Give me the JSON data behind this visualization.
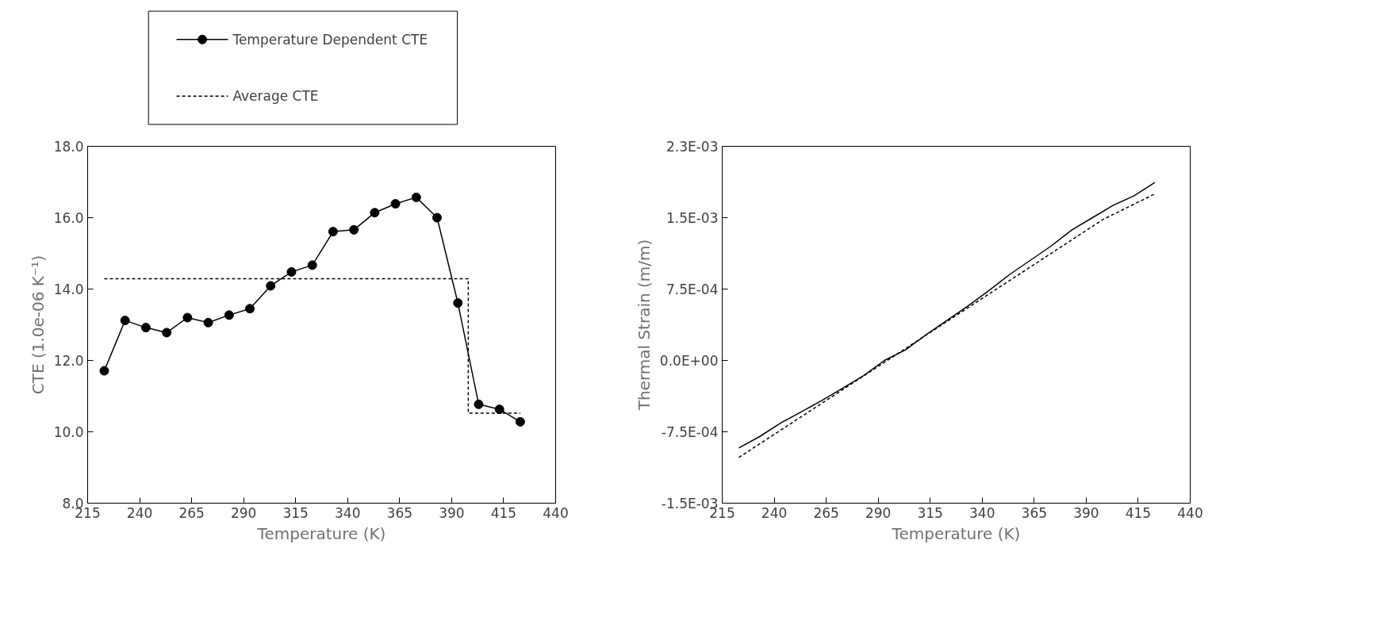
{
  "chart_data": [
    {
      "type": "line",
      "xlabel": "Temperature (K)",
      "ylabel": "CTE (1.0e-06 K⁻¹)",
      "xlim": [
        215,
        440
      ],
      "xticks": [
        215,
        240,
        265,
        290,
        315,
        340,
        365,
        390,
        415,
        440
      ],
      "ylim": [
        8,
        18
      ],
      "yticks": [
        {
          "value": 8,
          "label": "8.0"
        },
        {
          "value": 10,
          "label": "10.0"
        },
        {
          "value": 12,
          "label": "12.0"
        },
        {
          "value": 14,
          "label": "14.0"
        },
        {
          "value": 16,
          "label": "16.0"
        },
        {
          "value": 18,
          "label": "18.0"
        }
      ],
      "grid": false,
      "legend": "top",
      "series": [
        {
          "name": "Temperature Dependent CTE",
          "color": "#000000",
          "marker": "circle",
          "line_style": "solid",
          "x": [
            223,
            233,
            243,
            253,
            263,
            273,
            283,
            293,
            303,
            313,
            323,
            333,
            343,
            353,
            363,
            373,
            383,
            393,
            403,
            413,
            423
          ],
          "values": [
            11.71,
            13.12,
            12.92,
            12.78,
            13.2,
            13.06,
            13.27,
            13.45,
            14.09,
            14.48,
            14.67,
            15.61,
            15.66,
            16.14,
            16.39,
            16.57,
            16.0,
            13.61,
            10.77,
            10.63,
            10.28
          ]
        },
        {
          "name": "Average CTE",
          "color": "#000000",
          "marker": "none",
          "line_style": "dashed",
          "x": [
            223,
            398,
            398,
            423
          ],
          "values": [
            14.29,
            14.29,
            10.52,
            10.52
          ]
        }
      ]
    },
    {
      "type": "line",
      "xlabel": "Temperature (K)",
      "ylabel": "Thermal Strain (m/m)",
      "xlim": [
        215,
        440
      ],
      "xticks": [
        215,
        240,
        265,
        290,
        315,
        340,
        365,
        390,
        415,
        440
      ],
      "ylim": [
        -0.0015,
        0.00225
      ],
      "yticks": [
        {
          "value": -0.0015,
          "label": "-1.5E-03"
        },
        {
          "value": -0.00075,
          "label": "-7.5E-04"
        },
        {
          "value": 0,
          "label": "0.0E+00"
        },
        {
          "value": 0.00075,
          "label": "7.5E-04"
        },
        {
          "value": 0.0015,
          "label": "1.5E-03"
        },
        {
          "value": 0.00225,
          "label": "2.3E-03"
        }
      ],
      "grid": false,
      "series": [
        {
          "color": "#000000",
          "marker": "none",
          "line_style": "solid",
          "x": [
            223,
            233,
            243,
            253,
            263,
            273,
            283,
            293,
            303,
            313,
            323,
            333,
            343,
            353,
            363,
            373,
            383,
            393,
            403,
            413,
            423
          ],
          "values": [
            -0.00092,
            -0.0008,
            -0.00066,
            -0.00054,
            -0.00042,
            -0.00029,
            -0.00016,
            0,
            0.00011,
            0.00027,
            0.00042,
            0.00057,
            0.00073,
            0.0009,
            0.00105,
            0.0012,
            0.00137,
            0.0015,
            0.00163,
            0.00173,
            0.00187
          ]
        },
        {
          "color": "#000000",
          "marker": "none",
          "line_style": "dashed",
          "x": [
            223,
            398,
            423
          ],
          "values": [
            -0.00102,
            0.00148,
            0.00175
          ]
        }
      ]
    }
  ]
}
